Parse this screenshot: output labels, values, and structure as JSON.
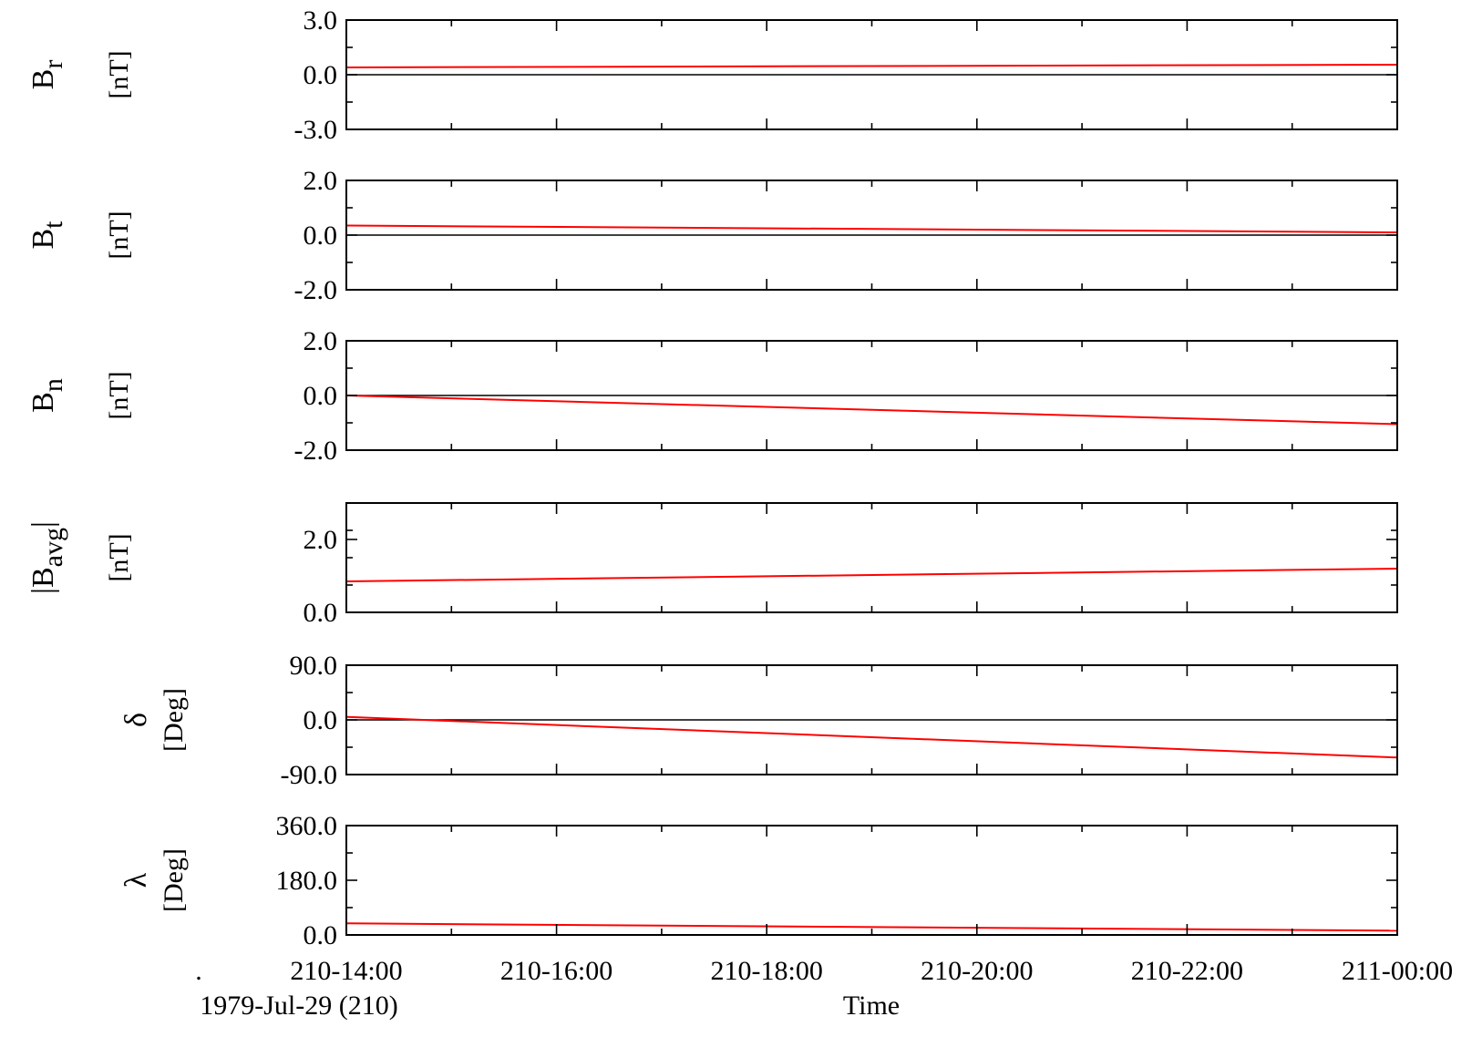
{
  "chart_data": [
    {
      "type": "line",
      "ylabel_main": "B",
      "ylabel_sub": "r",
      "ylabel_prefix": "",
      "ylabel_suffix": "",
      "unit": "[nT]",
      "yticks": [
        "3.0",
        "0.0",
        "-3.0"
      ],
      "ylim": [
        -3.0,
        3.0
      ],
      "zero_line": true,
      "series": [
        {
          "color": "#ff0000",
          "x": [
            0,
            10
          ],
          "values": [
            0.4,
            0.55
          ]
        }
      ]
    },
    {
      "type": "line",
      "ylabel_main": "B",
      "ylabel_sub": "t",
      "ylabel_prefix": "",
      "ylabel_suffix": "",
      "unit": "[nT]",
      "yticks": [
        "2.0",
        "0.0",
        "-2.0"
      ],
      "ylim": [
        -2.0,
        2.0
      ],
      "zero_line": true,
      "series": [
        {
          "color": "#ff0000",
          "x": [
            0,
            10
          ],
          "values": [
            0.35,
            0.1
          ]
        }
      ]
    },
    {
      "type": "line",
      "ylabel_main": "B",
      "ylabel_sub": "n",
      "ylabel_prefix": "",
      "ylabel_suffix": "",
      "unit": "[nT]",
      "yticks": [
        "2.0",
        "0.0",
        "-2.0"
      ],
      "ylim": [
        -2.0,
        2.0
      ],
      "zero_line": true,
      "series": [
        {
          "color": "#ff0000",
          "x": [
            0,
            10
          ],
          "values": [
            0.0,
            -1.05
          ]
        }
      ]
    },
    {
      "type": "line",
      "ylabel_main": "B",
      "ylabel_sub": "avg",
      "ylabel_prefix": "|",
      "ylabel_suffix": "|",
      "unit": "[nT]",
      "yticks": [
        "2.0",
        "0.0"
      ],
      "ytick_values": [
        2.0,
        0.0
      ],
      "ylim": [
        0.0,
        3.0
      ],
      "zero_line": false,
      "series": [
        {
          "color": "#ff0000",
          "x": [
            0,
            10
          ],
          "values": [
            0.85,
            1.2
          ]
        }
      ]
    },
    {
      "type": "line",
      "ylabel_main": "δ",
      "ylabel_sub": "",
      "ylabel_prefix": "",
      "ylabel_suffix": "",
      "unit": "[Deg]",
      "yticks": [
        "90.0",
        "0.0",
        "-90.0"
      ],
      "ylim": [
        -90.0,
        90.0
      ],
      "zero_line": true,
      "series": [
        {
          "color": "#ff0000",
          "x": [
            0,
            10
          ],
          "values": [
            5,
            -62
          ]
        }
      ]
    },
    {
      "type": "line",
      "ylabel_main": "λ",
      "ylabel_sub": "",
      "ylabel_prefix": "",
      "ylabel_suffix": "",
      "unit": "[Deg]",
      "yticks": [
        "360.0",
        "180.0",
        "0.0"
      ],
      "ylim": [
        0.0,
        360.0
      ],
      "zero_line": false,
      "series": [
        {
          "color": "#ff0000",
          "x": [
            0,
            10
          ],
          "values": [
            38,
            14
          ]
        }
      ]
    }
  ],
  "x_axis": {
    "tick_labels": [
      "210-14:00",
      "210-16:00",
      "210-18:00",
      "210-20:00",
      "210-22:00",
      "211-00:00"
    ],
    "xlim": [
      0,
      10
    ],
    "xlabel": "Time",
    "date_label": "1979-Jul-29 (210)",
    "corner_mark": "."
  }
}
